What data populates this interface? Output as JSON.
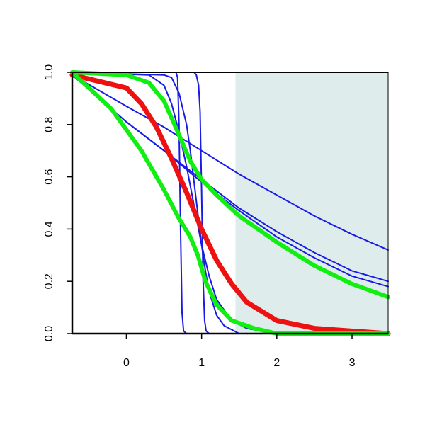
{
  "chart_data": {
    "type": "line",
    "title": "",
    "xlabel": "",
    "ylabel": "",
    "xlim": [
      -0.72,
      3.48
    ],
    "ylim": [
      0.0,
      1.0
    ],
    "x_ticks": [
      0,
      1,
      2,
      3
    ],
    "x_tick_labels": [
      "0",
      "1",
      "2",
      "3"
    ],
    "y_ticks": [
      0.0,
      0.2,
      0.4,
      0.6,
      0.8,
      1.0
    ],
    "y_tick_labels": [
      "0.0",
      "0.2",
      "0.4",
      "0.6",
      "0.8",
      "1.0"
    ],
    "grid": false,
    "legend": "none",
    "shaded_region": {
      "x_from": 1.45,
      "x_to": 3.48,
      "y_from": 0.0,
      "y_to": 1.0,
      "color": "#deecec"
    },
    "series": [
      {
        "color": "#1a1ae6",
        "width": 2,
        "x": [
          -0.72,
          0.0,
          0.5,
          1.0,
          1.5,
          2.0,
          2.5,
          3.0,
          3.48
        ],
        "y": [
          0.99,
          0.87,
          0.79,
          0.7,
          0.61,
          0.53,
          0.45,
          0.38,
          0.32
        ]
      },
      {
        "color": "#1a1ae6",
        "width": 2,
        "x": [
          -0.72,
          0.0,
          0.5,
          1.0,
          1.5,
          2.0,
          2.5,
          3.0,
          3.48
        ],
        "y": [
          0.99,
          0.81,
          0.7,
          0.59,
          0.48,
          0.39,
          0.31,
          0.24,
          0.2
        ]
      },
      {
        "color": "#1a1ae6",
        "width": 2,
        "x": [
          -0.72,
          0.0,
          0.5,
          1.0,
          1.5,
          2.0,
          2.5,
          3.0,
          3.48
        ],
        "y": [
          0.99,
          0.81,
          0.7,
          0.58,
          0.47,
          0.37,
          0.29,
          0.22,
          0.18
        ]
      },
      {
        "color": "#1a1ae6",
        "width": 2,
        "x": [
          -0.72,
          0.3,
          0.5,
          0.6,
          0.7,
          0.8,
          0.9,
          1.0,
          1.1,
          1.2,
          1.4,
          1.6,
          2.0,
          3.48
        ],
        "y": [
          1.0,
          0.99,
          0.95,
          0.88,
          0.77,
          0.64,
          0.49,
          0.34,
          0.22,
          0.13,
          0.05,
          0.02,
          0.0,
          0.0
        ]
      },
      {
        "color": "#1a1ae6",
        "width": 2,
        "x": [
          -0.72,
          0.5,
          0.6,
          0.7,
          0.8,
          0.85,
          0.9,
          0.95,
          1.0,
          1.05,
          1.1,
          1.2,
          1.3,
          1.5,
          3.48
        ],
        "y": [
          1.0,
          0.99,
          0.98,
          0.92,
          0.8,
          0.7,
          0.58,
          0.46,
          0.34,
          0.24,
          0.16,
          0.07,
          0.03,
          0.0,
          0.0
        ]
      },
      {
        "color": "#1a1ae6",
        "width": 2,
        "x": [
          -0.72,
          0.66,
          0.68,
          0.7,
          0.72,
          0.74,
          0.76,
          0.8,
          3.48
        ],
        "y": [
          1.0,
          1.0,
          0.98,
          0.8,
          0.4,
          0.08,
          0.01,
          0.0,
          0.0
        ]
      },
      {
        "color": "#1a1ae6",
        "width": 2,
        "x": [
          -0.72,
          0.9,
          0.93,
          0.96,
          0.98,
          1.0,
          1.02,
          1.04,
          1.06,
          1.1,
          3.48
        ],
        "y": [
          1.0,
          1.0,
          0.99,
          0.95,
          0.85,
          0.55,
          0.2,
          0.05,
          0.01,
          0.0,
          0.0
        ]
      },
      {
        "color": "#ee1111",
        "width": 7,
        "x": [
          -0.72,
          0.0,
          0.2,
          0.4,
          0.6,
          0.8,
          1.0,
          1.2,
          1.4,
          1.6,
          2.0,
          2.5,
          3.48
        ],
        "y": [
          0.99,
          0.94,
          0.88,
          0.79,
          0.67,
          0.54,
          0.4,
          0.28,
          0.19,
          0.12,
          0.05,
          0.02,
          0.0
        ]
      },
      {
        "color": "#11ee11",
        "width": 6,
        "x": [
          -0.72,
          0.0,
          0.3,
          0.5,
          0.7,
          0.85,
          1.0,
          1.2,
          1.5,
          2.0,
          2.5,
          3.0,
          3.48
        ],
        "y": [
          1.0,
          0.99,
          0.96,
          0.89,
          0.76,
          0.66,
          0.59,
          0.53,
          0.45,
          0.35,
          0.26,
          0.19,
          0.14
        ]
      },
      {
        "color": "#11ee11",
        "width": 6,
        "x": [
          -0.72,
          -0.2,
          0.2,
          0.5,
          0.7,
          0.85,
          0.95,
          1.05,
          1.2,
          1.4,
          1.7,
          2.0,
          2.5,
          3.48
        ],
        "y": [
          1.0,
          0.86,
          0.7,
          0.55,
          0.44,
          0.37,
          0.3,
          0.2,
          0.11,
          0.05,
          0.02,
          0.0,
          0.0,
          0.0
        ]
      }
    ]
  }
}
